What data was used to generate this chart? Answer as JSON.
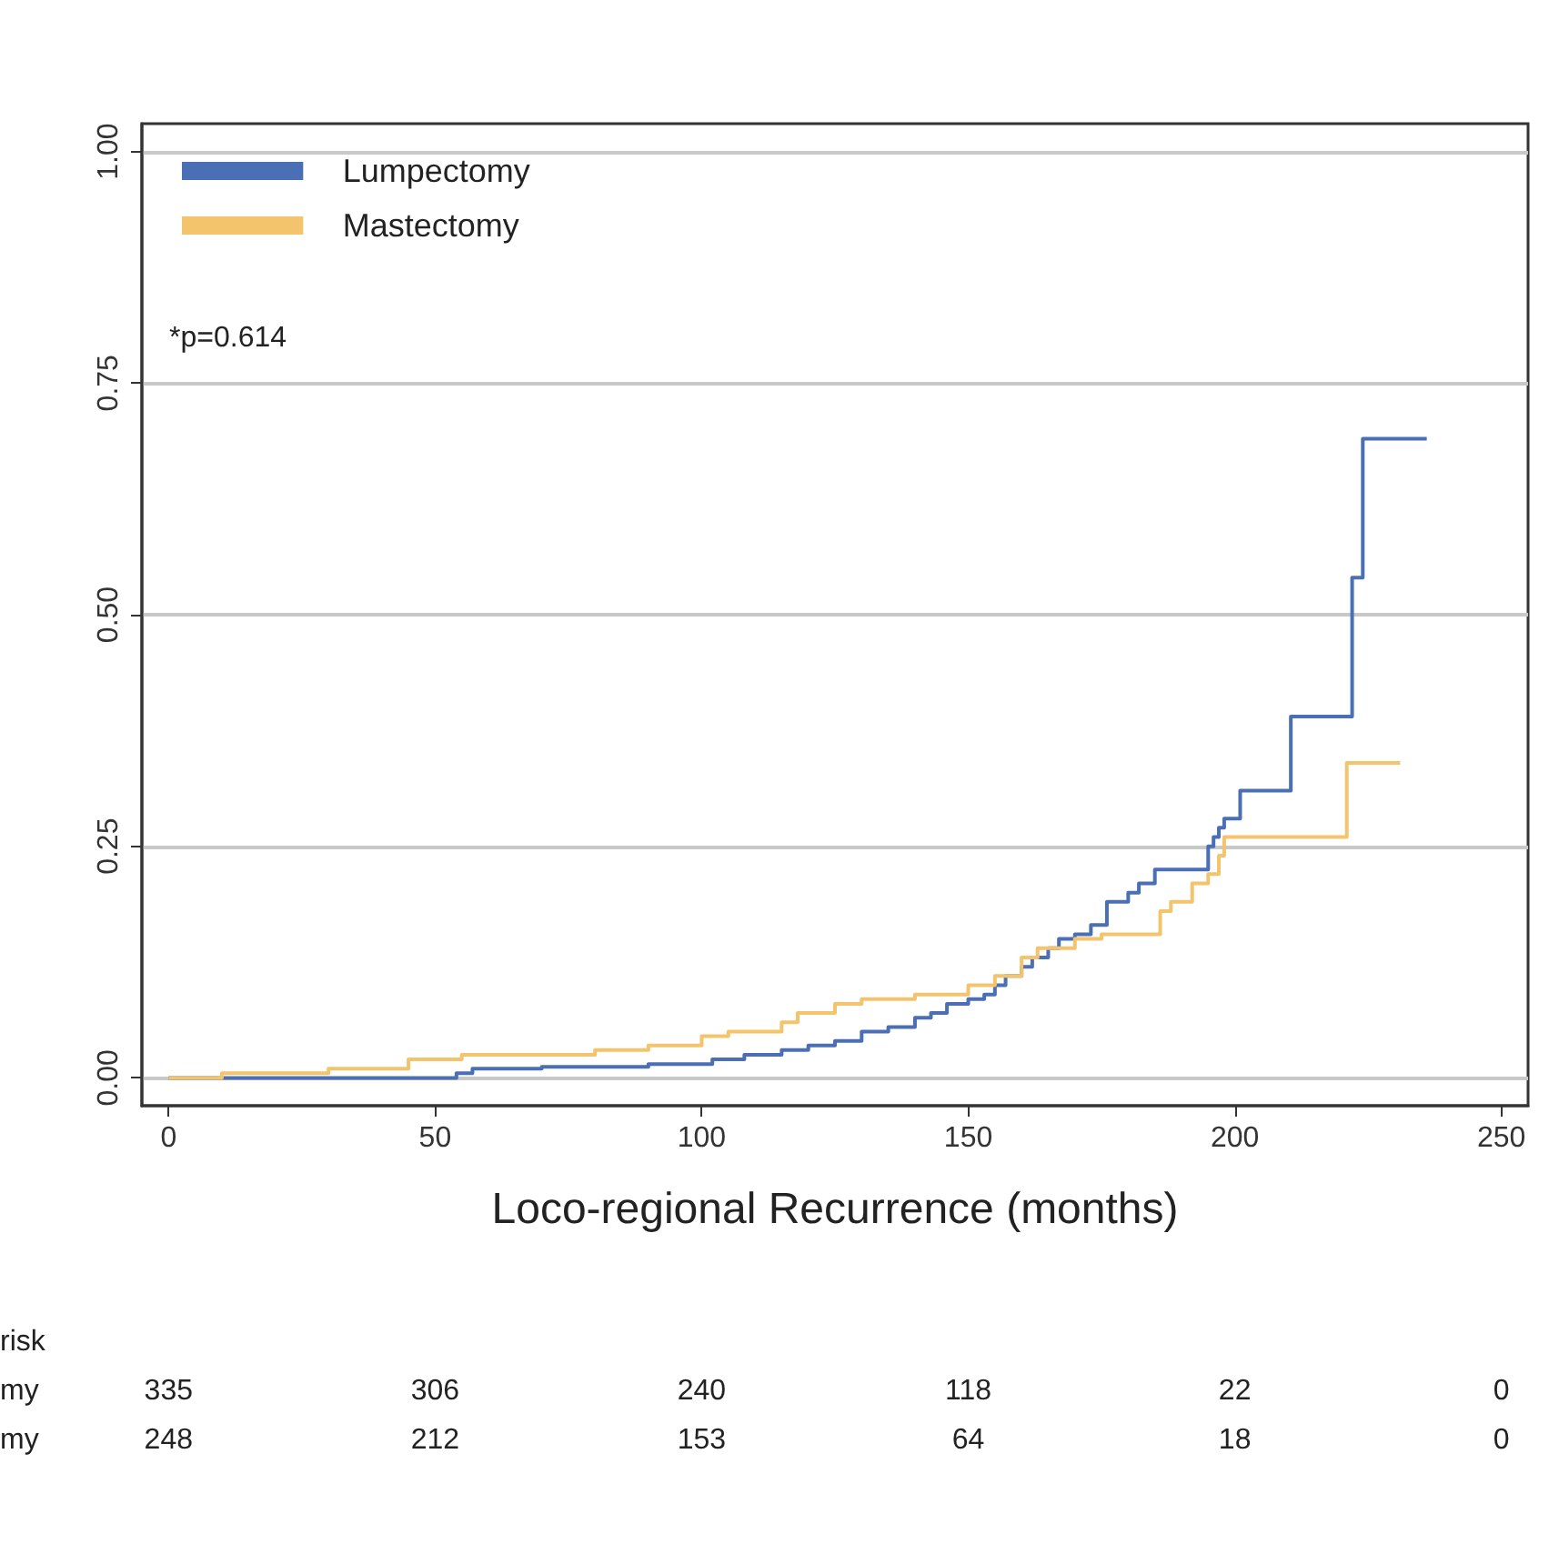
{
  "chart_data": {
    "type": "step",
    "xlabel": "Loco-regional Recurrence (months)",
    "xlim": [
      -5,
      255
    ],
    "xticks": [
      0,
      50,
      100,
      150,
      200,
      250
    ],
    "ylim": [
      -0.03,
      1.03
    ],
    "yticks": [
      {
        "value": 0,
        "label": "0.00"
      },
      {
        "value": 0.25,
        "label": "0.25"
      },
      {
        "value": 0.5,
        "label": "0.50"
      },
      {
        "value": 0.75,
        "label": "0.75"
      },
      {
        "value": 1,
        "label": "1.00"
      }
    ],
    "grid": "y",
    "legend": "top left",
    "marker": "none",
    "line_style": "solid",
    "series": [
      {
        "name": "Lumpectomy",
        "color": "#4a6fb5",
        "x": [
          0,
          54,
          57,
          70,
          90,
          102,
          108,
          115,
          120,
          125,
          130,
          135,
          140,
          143,
          146,
          150,
          153,
          155,
          157,
          160,
          162,
          165,
          167,
          170,
          173,
          176,
          180,
          182,
          185,
          195,
          196,
          197,
          198,
          201,
          210.5,
          222,
          224,
          236
        ],
        "values": [
          0,
          0.005,
          0.01,
          0.012,
          0.015,
          0.02,
          0.025,
          0.03,
          0.035,
          0.04,
          0.05,
          0.055,
          0.065,
          0.07,
          0.08,
          0.085,
          0.09,
          0.1,
          0.11,
          0.12,
          0.13,
          0.14,
          0.15,
          0.155,
          0.165,
          0.19,
          0.2,
          0.21,
          0.225,
          0.25,
          0.26,
          0.27,
          0.28,
          0.31,
          0.39,
          0.54,
          0.69,
          0.69
        ]
      },
      {
        "name": "Mastectomy",
        "color": "#f3c46b",
        "x": [
          0,
          10,
          30,
          45,
          55,
          80,
          90,
          100,
          105,
          115,
          118,
          125,
          130,
          140,
          150,
          155,
          160,
          163,
          170,
          175,
          186,
          188,
          192,
          195,
          197,
          198,
          221,
          231
        ],
        "values": [
          0,
          0.005,
          0.01,
          0.02,
          0.025,
          0.03,
          0.035,
          0.045,
          0.05,
          0.06,
          0.07,
          0.08,
          0.085,
          0.09,
          0.1,
          0.11,
          0.13,
          0.14,
          0.15,
          0.155,
          0.18,
          0.19,
          0.21,
          0.22,
          0.24,
          0.26,
          0.34,
          0.34
        ]
      }
    ],
    "annotations": [
      "*p=0.614",
      "risk",
      "my 335 306 240 118 22 0",
      "my 248 212 153 64 18 0"
    ]
  }
}
